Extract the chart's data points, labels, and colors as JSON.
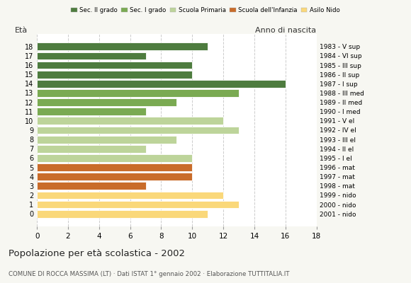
{
  "ages": [
    18,
    17,
    16,
    15,
    14,
    13,
    12,
    11,
    10,
    9,
    8,
    7,
    6,
    5,
    4,
    3,
    2,
    1,
    0
  ],
  "values": [
    11,
    7,
    10,
    10,
    16,
    13,
    9,
    7,
    12,
    13,
    9,
    7,
    10,
    10,
    10,
    7,
    12,
    13,
    11
  ],
  "anno_nascita": [
    "1983 - V sup",
    "1984 - VI sup",
    "1985 - III sup",
    "1986 - II sup",
    "1987 - I sup",
    "1988 - III med",
    "1989 - II med",
    "1990 - I med",
    "1991 - V el",
    "1992 - IV el",
    "1993 - III el",
    "1994 - II el",
    "1995 - I el",
    "1996 - mat",
    "1997 - mat",
    "1998 - mat",
    "1999 - nido",
    "2000 - nido",
    "2001 - nido"
  ],
  "colors": [
    "#4e7c3f",
    "#4e7c3f",
    "#4e7c3f",
    "#4e7c3f",
    "#4e7c3f",
    "#7aaa52",
    "#7aaa52",
    "#7aaa52",
    "#bdd49a",
    "#bdd49a",
    "#bdd49a",
    "#bdd49a",
    "#bdd49a",
    "#c96c2a",
    "#c96c2a",
    "#c96c2a",
    "#fad87a",
    "#fad87a",
    "#fad87a"
  ],
  "legend_labels": [
    "Sec. II grado",
    "Sec. I grado",
    "Scuola Primaria",
    "Scuola dell'Infanzia",
    "Asilo Nido"
  ],
  "legend_colors": [
    "#4e7c3f",
    "#7aaa52",
    "#bdd49a",
    "#c96c2a",
    "#fad87a"
  ],
  "title": "Popolazione per età scolastica - 2002",
  "subtitle": "COMUNE DI ROCCA MASSIMA (LT) · Dati ISTAT 1° gennaio 2002 · Elaborazione TUTTITALIA.IT",
  "label_eta": "Età",
  "label_anno": "Anno di nascita",
  "xlim": [
    0,
    18
  ],
  "xticks": [
    0,
    2,
    4,
    6,
    8,
    10,
    12,
    14,
    16,
    18
  ],
  "bg_color": "#f7f7f2",
  "plot_bg": "#ffffff",
  "bar_height": 0.82
}
